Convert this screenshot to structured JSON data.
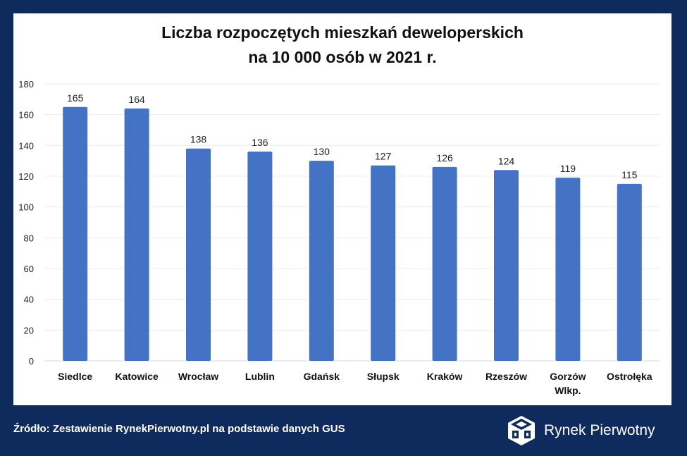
{
  "chart_data": {
    "type": "bar",
    "title": [
      "Liczba rozpoczętych mieszkań deweloperskich",
      "na 10 000 osób w 2021 r."
    ],
    "categories": [
      [
        "Siedlce"
      ],
      [
        "Katowice"
      ],
      [
        "Wrocław"
      ],
      [
        "Lublin"
      ],
      [
        "Gdańsk"
      ],
      [
        "Słupsk"
      ],
      [
        "Kraków"
      ],
      [
        "Rzeszów"
      ],
      [
        "Gorzów",
        "Wlkp."
      ],
      [
        "Ostrołęka"
      ]
    ],
    "values": [
      165,
      164,
      138,
      136,
      130,
      127,
      126,
      124,
      119,
      115
    ],
    "ylim": [
      0,
      180
    ],
    "yticks": [
      0,
      20,
      40,
      60,
      80,
      100,
      120,
      140,
      160,
      180
    ],
    "bar_color": "#4472c4",
    "grid": true
  },
  "footer": {
    "source": "Źródło: Zestawienie RynekPierwotny.pl na podstawie danych GUS"
  },
  "brand": {
    "name": "Rynek Pierwotny",
    "logo_icon": "cube-logo-icon"
  },
  "colors": {
    "background": "#0f2a5c",
    "panel": "#ffffff"
  }
}
